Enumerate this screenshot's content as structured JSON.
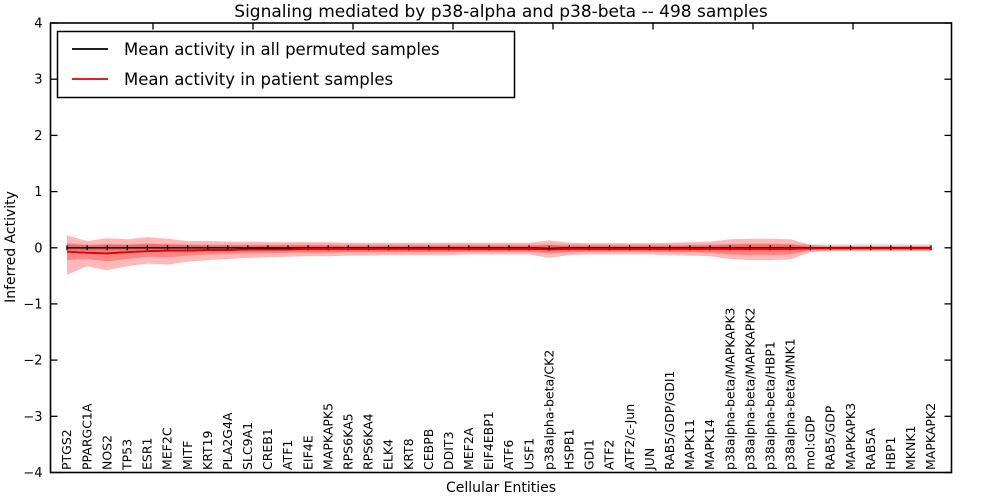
{
  "title": "Signaling mediated by p38-alpha and p38-beta -- 498 samples",
  "xlabel": "Cellular Entities",
  "ylabel": "Inferred Activity",
  "legend": {
    "permuted": "Mean activity in all permuted samples",
    "patient": "Mean activity in patient samples"
  },
  "colors": {
    "permuted_line": "#000000",
    "patient_line": "#e00000",
    "patient_band": "#ff0000",
    "permuted_band": "#000000"
  },
  "chart_data": {
    "type": "line",
    "title": "Signaling mediated by p38-alpha and p38-beta -- 498 samples",
    "xlabel": "Cellular Entities",
    "ylabel": "Inferred Activity",
    "ylim": [
      -4,
      4
    ],
    "yticks": [
      -4,
      -3,
      -2,
      -1,
      0,
      1,
      2,
      3,
      4
    ],
    "grid": false,
    "legend_position": "upper left",
    "categories": [
      "PTGS2",
      "PPARGC1A",
      "NOS2",
      "TP53",
      "ESR1",
      "MEF2C",
      "MITF",
      "KRT19",
      "PLA2G4A",
      "SLC9A1",
      "CREB1",
      "ATF1",
      "EIF4E",
      "MAPKAPK5",
      "RPS6KA5",
      "RPS6KA4",
      "ELK4",
      "KRT8",
      "CEBPB",
      "DDIT3",
      "MEF2A",
      "EIF4EBP1",
      "ATF6",
      "USF1",
      "p38alpha-beta/CK2",
      "HSPB1",
      "GDI1",
      "ATF2",
      "ATF2/c-Jun",
      "JUN",
      "RAB5/GDP/GDI1",
      "MAPK11",
      "MAPK14",
      "p38alpha-beta/MAPKAPK3",
      "p38alpha-beta/MAPKAPK2",
      "p38alpha-beta/HBP1",
      "p38alpha-beta/MNK1",
      "mol:GDP",
      "RAB5/GDP",
      "MAPKAPK3",
      "RAB5A",
      "HBP1",
      "MKNK1",
      "MAPKAPK2"
    ],
    "series": [
      {
        "name": "Mean activity in all permuted samples",
        "color": "#000000",
        "marker": "|",
        "values": [
          0,
          0,
          0,
          0,
          0,
          0,
          0,
          0,
          0,
          0,
          0,
          0,
          0,
          0,
          0,
          0,
          0,
          0,
          0,
          0,
          0,
          0,
          0,
          0,
          -0.01,
          0,
          0,
          0,
          0,
          0,
          0,
          0,
          0,
          0,
          0,
          0,
          0,
          0,
          0,
          0,
          0,
          0,
          0,
          0
        ]
      },
      {
        "name": "Mean activity in patient samples",
        "color": "#e00000",
        "marker": null,
        "values": [
          -0.07,
          -0.09,
          -0.1,
          -0.08,
          -0.06,
          -0.05,
          -0.05,
          -0.04,
          -0.04,
          -0.03,
          -0.03,
          -0.03,
          -0.02,
          -0.02,
          -0.02,
          -0.02,
          -0.02,
          -0.02,
          -0.02,
          -0.02,
          -0.02,
          -0.02,
          -0.02,
          -0.02,
          -0.03,
          -0.02,
          -0.02,
          -0.02,
          -0.02,
          -0.02,
          -0.02,
          -0.02,
          -0.02,
          -0.02,
          -0.02,
          -0.02,
          -0.02,
          -0.01,
          -0.01,
          -0.01,
          -0.01,
          -0.01,
          -0.01,
          -0.01
        ]
      }
    ],
    "bands": [
      {
        "name": "permuted-outer",
        "color": "#000000",
        "opacity": 0.09,
        "upper": 0.07,
        "lower": -0.07
      },
      {
        "name": "permuted-inner",
        "color": "#000000",
        "opacity": 0.09,
        "upper": 0.045,
        "lower": -0.045
      },
      {
        "name": "patient-outer",
        "color": "#ff0000",
        "opacity": 0.28,
        "upper": [
          0.22,
          0.12,
          0.17,
          0.15,
          0.19,
          0.16,
          0.12,
          0.12,
          0.11,
          0.11,
          0.1,
          0.1,
          0.1,
          0.1,
          0.09,
          0.09,
          0.09,
          0.09,
          0.09,
          0.09,
          0.09,
          0.09,
          0.09,
          0.09,
          0.13,
          0.09,
          0.08,
          0.08,
          0.08,
          0.08,
          0.09,
          0.1,
          0.11,
          0.15,
          0.16,
          0.16,
          0.15,
          0.05,
          0.03,
          0.03,
          0.03,
          0.03,
          0.03,
          0.03
        ],
        "lower": [
          -0.48,
          -0.33,
          -0.4,
          -0.33,
          -0.28,
          -0.3,
          -0.25,
          -0.22,
          -0.2,
          -0.18,
          -0.17,
          -0.16,
          -0.15,
          -0.15,
          -0.14,
          -0.14,
          -0.13,
          -0.13,
          -0.13,
          -0.13,
          -0.12,
          -0.12,
          -0.12,
          -0.12,
          -0.18,
          -0.13,
          -0.12,
          -0.12,
          -0.12,
          -0.12,
          -0.13,
          -0.14,
          -0.15,
          -0.2,
          -0.22,
          -0.22,
          -0.21,
          -0.08,
          -0.05,
          -0.05,
          -0.05,
          -0.05,
          -0.05,
          -0.05
        ]
      },
      {
        "name": "patient-inner",
        "color": "#ff0000",
        "opacity": 0.28,
        "upper": [
          0.08,
          0.04,
          0.06,
          0.05,
          0.07,
          0.06,
          0.05,
          0.04,
          0.04,
          0.04,
          0.04,
          0.04,
          0.04,
          0.04,
          0.03,
          0.03,
          0.03,
          0.03,
          0.03,
          0.03,
          0.03,
          0.03,
          0.03,
          0.03,
          0.05,
          0.03,
          0.03,
          0.03,
          0.03,
          0.03,
          0.03,
          0.04,
          0.04,
          0.06,
          0.07,
          0.07,
          0.06,
          0.02,
          0.01,
          0.01,
          0.01,
          0.01,
          0.01,
          0.01
        ],
        "lower": [
          -0.22,
          -0.2,
          -0.24,
          -0.2,
          -0.16,
          -0.17,
          -0.14,
          -0.12,
          -0.11,
          -0.1,
          -0.1,
          -0.09,
          -0.09,
          -0.09,
          -0.08,
          -0.08,
          -0.08,
          -0.08,
          -0.08,
          -0.08,
          -0.07,
          -0.07,
          -0.07,
          -0.07,
          -0.1,
          -0.08,
          -0.07,
          -0.07,
          -0.07,
          -0.07,
          -0.08,
          -0.08,
          -0.09,
          -0.12,
          -0.13,
          -0.13,
          -0.12,
          -0.04,
          -0.03,
          -0.03,
          -0.03,
          -0.03,
          -0.03,
          -0.03
        ]
      }
    ]
  }
}
